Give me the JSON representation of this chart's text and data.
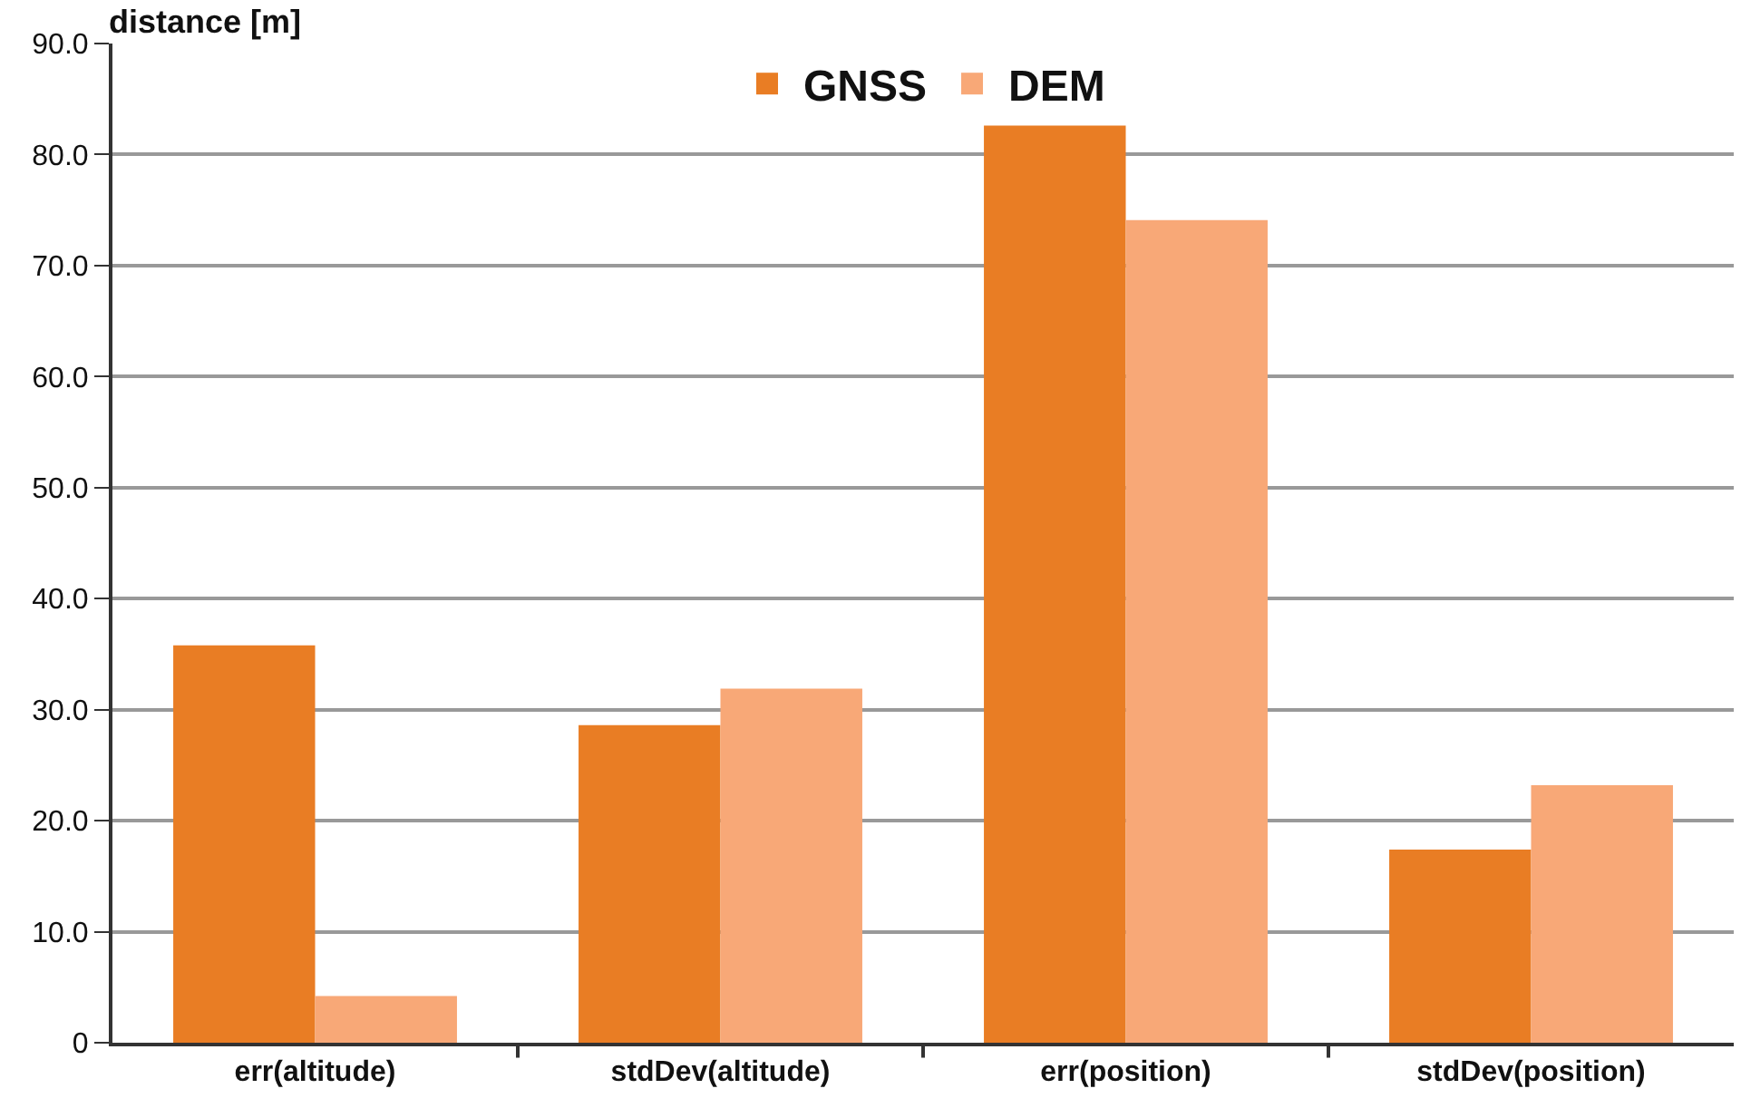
{
  "chart_data": {
    "type": "bar",
    "ylabel": "distance [m]",
    "categories": [
      "err(altitude)",
      "stdDev(altitude)",
      "err(position)",
      "stdDev(position)"
    ],
    "series": [
      {
        "name": "GNSS",
        "color": "#e97d24",
        "values": [
          35.8,
          28.6,
          82.6,
          17.4
        ]
      },
      {
        "name": "DEM",
        "color": "#f8a877",
        "values": [
          4.2,
          31.9,
          74.1,
          23.2
        ]
      }
    ],
    "ylim": [
      0,
      90
    ],
    "yticks": [
      0,
      {
        "value": 10,
        "label": "10.0"
      },
      {
        "value": 20,
        "label": "20.0"
      },
      {
        "value": 30,
        "label": "30.0"
      },
      {
        "value": 40,
        "label": "40.0"
      },
      {
        "value": 50,
        "label": "50.0"
      },
      {
        "value": 60,
        "label": "60.0"
      },
      {
        "value": 70,
        "label": "70.0"
      },
      {
        "value": 80,
        "label": "80.0"
      },
      {
        "value": 90,
        "label": "90.0"
      }
    ],
    "grid": "y",
    "legend": "top"
  }
}
